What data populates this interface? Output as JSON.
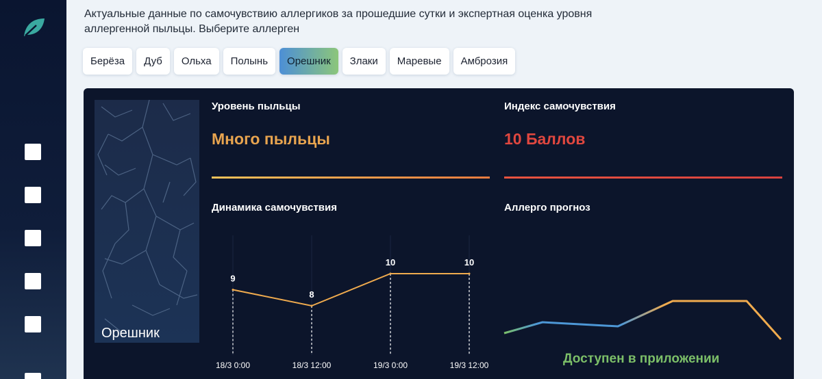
{
  "intro": "Актуальные данные по самочувствию аллергиков за прошедшие сутки и экспертная оценка уровня аллергенной пыльцы. Выберите аллерген",
  "tabs": [
    {
      "label": "Берёза",
      "active": false
    },
    {
      "label": "Дуб",
      "active": false
    },
    {
      "label": "Ольха",
      "active": false
    },
    {
      "label": "Полынь",
      "active": false
    },
    {
      "label": "Орешник",
      "active": true
    },
    {
      "label": "Злаки",
      "active": false
    },
    {
      "label": "Маревые",
      "active": false
    },
    {
      "label": "Амброзия",
      "active": false
    }
  ],
  "card": {
    "plant_name": "Орешник",
    "pollen_title": "Уровень пыльцы",
    "pollen_value": "Много пыльцы",
    "wellbeing_title": "Индекс самочувствия",
    "wellbeing_value": "10 Баллов",
    "dynamics_title": "Динамика самочувствия",
    "forecast_title": "Аллерго прогноз",
    "forecast_note": "Доступен в приложении"
  },
  "colors": {
    "pollen": "#e8a44f",
    "wellbeing": "#e0473f",
    "line": "#f0ab4e",
    "accent_green": "#7cbf68"
  },
  "chart_data": {
    "type": "line",
    "x": [
      "18/3 0:00",
      "18/3 12:00",
      "19/3 0:00",
      "19/3 12:00"
    ],
    "series": [
      {
        "values": [
          9,
          8,
          10,
          10
        ]
      }
    ],
    "grid": true
  }
}
